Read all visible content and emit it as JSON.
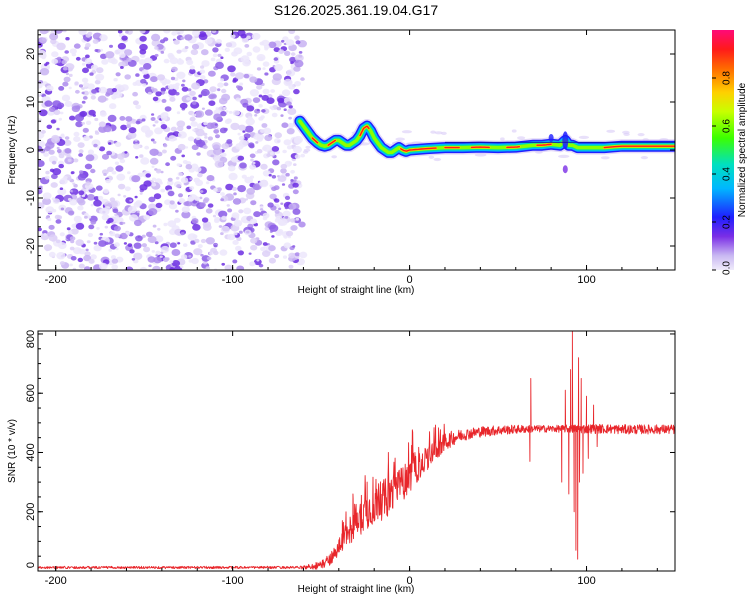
{
  "title": "S126.2025.361.19.04.G17",
  "chart_data": [
    {
      "type": "heatmap",
      "xlabel": "Height of straight line (km)",
      "ylabel": "Frequency (Hz)",
      "xlim": [
        -210,
        150
      ],
      "ylim": [
        -25,
        25
      ],
      "x_ticks": [
        -200,
        -100,
        0,
        100
      ],
      "y_ticks": [
        -20,
        -10,
        0,
        10,
        20
      ],
      "noise_region_x": [
        -210,
        -60
      ],
      "ridge": {
        "x": [
          -62,
          -58,
          -55,
          -52,
          -50,
          -48,
          -46,
          -44,
          -42,
          -40,
          -38,
          -36,
          -34,
          -32,
          -30,
          -28,
          -26,
          -24,
          -22,
          -20,
          -18,
          -16,
          -14,
          -12,
          -10,
          -8,
          -6,
          -4,
          -2,
          0,
          10,
          20,
          30,
          40,
          50,
          60,
          70,
          75,
          80,
          85,
          88,
          90,
          92,
          95,
          100,
          110,
          120,
          130,
          140,
          150
        ],
        "y": [
          6,
          4,
          2.5,
          1.5,
          1,
          0.8,
          1,
          1.5,
          2,
          2,
          1.5,
          1,
          1,
          1.5,
          2,
          3,
          4.5,
          5,
          4,
          2.5,
          1.5,
          0.5,
          0,
          -0.5,
          -0.5,
          0,
          0.5,
          0,
          -0.3,
          0,
          0.3,
          0.5,
          0.5,
          0.6,
          0.5,
          0.6,
          1,
          1,
          1.2,
          1,
          2,
          1,
          1,
          0.5,
          0.5,
          0.5,
          0.8,
          0.8,
          0.8,
          0.8
        ]
      },
      "colorbar": {
        "label": "Normalized spectral amplitude",
        "ticks": [
          0.0,
          0.2,
          0.4,
          0.6,
          0.8
        ],
        "tick_labels": [
          "0.0",
          "0.2",
          "0.4",
          "0.6",
          "0.8"
        ],
        "range": [
          0,
          1
        ],
        "colormap": "rainbow (violet-blue-cyan-green-yellow-orange-red-magenta)"
      }
    },
    {
      "type": "line",
      "xlabel": "Height of straight line (km)",
      "ylabel": "SNR (10 * v/v)",
      "xlim": [
        -210,
        150
      ],
      "ylim": [
        0,
        810
      ],
      "x_ticks": [
        -200,
        -100,
        0,
        100
      ],
      "y_ticks": [
        0,
        200,
        400,
        600,
        800
      ],
      "series": [
        {
          "name": "SNR",
          "color": "#e8262b",
          "envelope_x": [
            -210,
            -60,
            -50,
            -45,
            -40,
            -35,
            -30,
            -25,
            -20,
            -15,
            -10,
            -5,
            0,
            5,
            10,
            15,
            20,
            25,
            30,
            35,
            40,
            50,
            60,
            70,
            80,
            85,
            90,
            95,
            100,
            110,
            120,
            130,
            140,
            150
          ],
          "envelope_y": [
            12,
            12,
            20,
            40,
            80,
            130,
            170,
            200,
            220,
            240,
            260,
            290,
            320,
            350,
            380,
            410,
            435,
            450,
            460,
            465,
            470,
            475,
            478,
            480,
            480,
            480,
            480,
            480,
            480,
            480,
            478,
            478,
            478,
            478
          ],
          "noise_x": [
            -210,
            -62,
            -45,
            -30,
            -10,
            10,
            30,
            75,
            85,
            100,
            150
          ],
          "noise_amp": [
            4,
            4,
            20,
            60,
            70,
            40,
            20,
            12,
            12,
            16,
            16
          ],
          "spikes": [
            {
              "x": -38,
              "y": 170
            },
            {
              "x": -32,
              "y": 260
            },
            {
              "x": -24,
              "y": 300
            },
            {
              "x": -12,
              "y": 400
            },
            {
              "x": -5,
              "y": 300
            },
            {
              "x": 0,
              "y": 330
            },
            {
              "x": 5,
              "y": 340
            },
            {
              "x": 68,
              "y": 370
            },
            {
              "x": 68.5,
              "y": 650
            },
            {
              "x": 86,
              "y": 300
            },
            {
              "x": 88,
              "y": 610
            },
            {
              "x": 90,
              "y": 260
            },
            {
              "x": 91,
              "y": 680
            },
            {
              "x": 92,
              "y": 810
            },
            {
              "x": 93,
              "y": 200
            },
            {
              "x": 94,
              "y": 70
            },
            {
              "x": 95,
              "y": 40
            },
            {
              "x": 95.5,
              "y": 720
            },
            {
              "x": 96,
              "y": 300
            },
            {
              "x": 97,
              "y": 650
            },
            {
              "x": 98,
              "y": 330
            },
            {
              "x": 100,
              "y": 590
            },
            {
              "x": 101,
              "y": 380
            },
            {
              "x": 104,
              "y": 560
            },
            {
              "x": 106,
              "y": 420
            }
          ]
        }
      ]
    }
  ]
}
